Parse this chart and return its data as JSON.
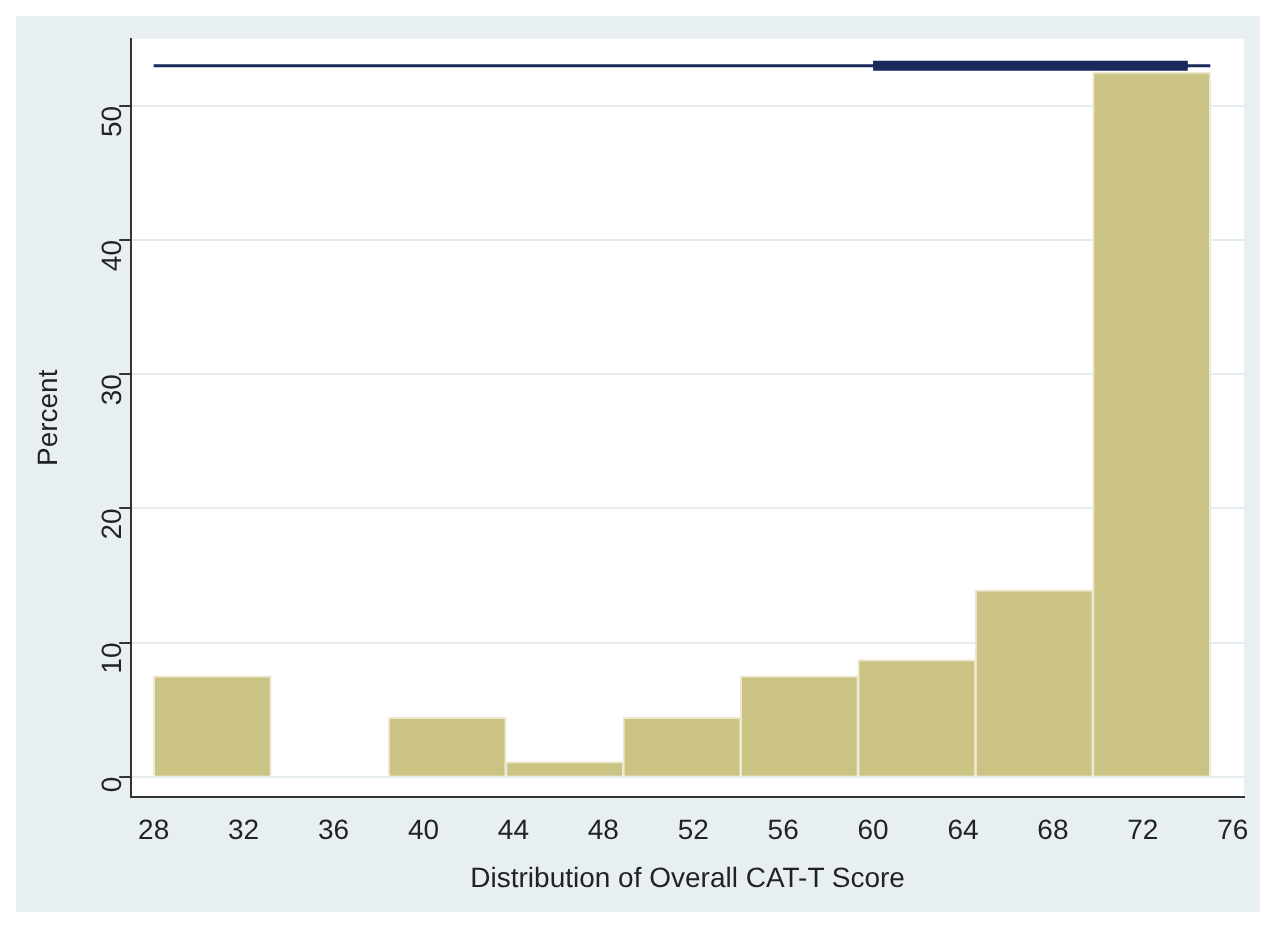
{
  "chart_data": {
    "type": "histogram",
    "xlabel": "Distribution of Overall CAT-T Score",
    "ylabel": "Percent",
    "bins": [
      28,
      33.22,
      38.44,
      43.67,
      48.89,
      54.11,
      59.33,
      64.56,
      69.78,
      75
    ],
    "values": [
      7.5,
      0,
      4.4,
      1.1,
      4.4,
      7.5,
      8.7,
      13.9,
      52.5
    ],
    "color": "#cbc383",
    "series": [
      {
        "type": "line",
        "x": [
          28,
          75
        ],
        "values": [
          53,
          53
        ],
        "color": "#1a2a5a"
      },
      {
        "type": "line",
        "x": [
          60,
          74
        ],
        "values": [
          53,
          53
        ],
        "color": "#1a2a5a"
      }
    ],
    "xlim": [
      27,
      76.5
    ],
    "xticks": [
      28,
      32,
      36,
      40,
      44,
      48,
      52,
      56,
      60,
      64,
      68,
      72,
      76
    ],
    "ylim": [
      -1.5,
      55
    ],
    "yticks": [
      0,
      10,
      20,
      30,
      40,
      50
    ],
    "grid": "y",
    "legend": false
  }
}
